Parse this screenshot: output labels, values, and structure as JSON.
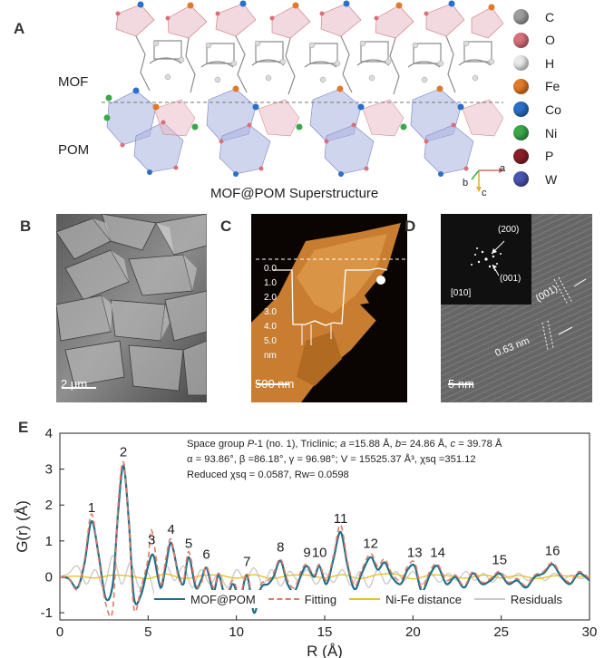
{
  "panels": {
    "A": {
      "letter": "A",
      "label_mof": "MOF",
      "label_pom": "POM",
      "caption": "MOF@POM Superstructure",
      "axes": {
        "a": "a",
        "b": "b",
        "c": "c"
      },
      "legend": [
        {
          "symbol": "C",
          "color": "#9e9e9e"
        },
        {
          "symbol": "O",
          "color": "#d9707a"
        },
        {
          "symbol": "H",
          "color": "#e8e8e8"
        },
        {
          "symbol": "Fe",
          "color": "#e07a2a"
        },
        {
          "symbol": "Co",
          "color": "#2a6fc9"
        },
        {
          "symbol": "Ni",
          "color": "#3aa84a"
        },
        {
          "symbol": "P",
          "color": "#8a1f28"
        },
        {
          "symbol": "W",
          "color": "#4a55b0"
        }
      ]
    },
    "B": {
      "letter": "B",
      "scalebar": "2 μm"
    },
    "C": {
      "letter": "C",
      "scalebar": "500 nm",
      "profile_ticks": [
        "0.0",
        "1.0",
        "2.0",
        "3.0",
        "4.0",
        "5.0"
      ],
      "profile_unit": "nm"
    },
    "D": {
      "letter": "D",
      "scalebar": "5 nm",
      "fft_axis": "[010]",
      "spot_200": "(200)",
      "spot_001": "(001)",
      "lattice_label": "(001)",
      "d_spacing": "0.63 nm"
    },
    "E": {
      "letter": "E",
      "info_line1_a": "Space group ",
      "info_line1_b": "P",
      "info_line1_c": "-1 (no. 1), Triclinic; ",
      "info_line1_d": "a",
      "info_line1_e": " =15.88 Å, ",
      "info_line1_f": "b",
      "info_line1_g": "= 24.86 Å, ",
      "info_line1_h": "c",
      "info_line1_i": " = 39.78 Å",
      "info_line2": "α = 93.86°, β =86.18°, γ = 96.98°; V = 15525.37 Å³, χsq =351.12",
      "info_line3": "Reduced χsq = 0.0587, Rw= 0.0598"
    }
  },
  "chart_data": {
    "type": "line",
    "xlabel": "R (Å)",
    "ylabel": "G(r) (Å)",
    "xlim": [
      0,
      30
    ],
    "ylim": [
      -1.2,
      4
    ],
    "xticks": [
      "0",
      "5",
      "10",
      "15",
      "20",
      "25",
      "30"
    ],
    "yticks": [
      "-1",
      "0",
      "1",
      "2",
      "3",
      "4"
    ],
    "legend": [
      "MOF@POM",
      "Fitting",
      "Ni-Fe distance",
      "Residuals"
    ],
    "colors": {
      "MOF@POM": "#1f6e86",
      "Fitting": "#e07a6a",
      "Ni-Fe distance": "#e6c22a",
      "Residuals": "#c8c8c8"
    },
    "peaks": [
      {
        "label": "1",
        "r": 1.8,
        "g": 1.55
      },
      {
        "label": "2",
        "r": 3.6,
        "g": 3.1
      },
      {
        "label": "3",
        "r": 5.2,
        "g": 0.65
      },
      {
        "label": "4",
        "r": 6.3,
        "g": 0.95
      },
      {
        "label": "5",
        "r": 7.3,
        "g": 0.55
      },
      {
        "label": "6",
        "r": 8.3,
        "g": 0.25
      },
      {
        "label": "7",
        "r": 10.6,
        "g": 0.05
      },
      {
        "label": "8",
        "r": 12.5,
        "g": 0.45
      },
      {
        "label": "9",
        "r": 14.0,
        "g": 0.3
      },
      {
        "label": "10",
        "r": 14.7,
        "g": 0.3
      },
      {
        "label": "11",
        "r": 15.9,
        "g": 1.25
      },
      {
        "label": "12",
        "r": 17.6,
        "g": 0.55
      },
      {
        "label": "13",
        "r": 20.1,
        "g": 0.3
      },
      {
        "label": "14",
        "r": 21.4,
        "g": 0.3
      },
      {
        "label": "15",
        "r": 24.9,
        "g": 0.1
      },
      {
        "label": "16",
        "r": 27.9,
        "g": 0.35
      }
    ],
    "series": [
      {
        "name": "MOF@POM",
        "x": [
          0,
          0.5,
          1.0,
          1.4,
          1.8,
          2.2,
          2.6,
          3.0,
          3.3,
          3.6,
          3.9,
          4.2,
          4.6,
          5.0,
          5.3,
          5.7,
          6.0,
          6.3,
          6.7,
          7.0,
          7.3,
          7.7,
          8.0,
          8.3,
          8.7,
          9.0,
          9.4,
          9.8,
          10.2,
          10.6,
          11.0,
          11.4,
          11.8,
          12.1,
          12.5,
          12.9,
          13.3,
          13.7,
          14.0,
          14.4,
          14.7,
          15.1,
          15.5,
          15.9,
          16.3,
          16.7,
          17.1,
          17.6,
          18.0,
          18.4,
          18.8,
          19.3,
          19.7,
          20.1,
          20.5,
          21.0,
          21.4,
          21.9,
          22.4,
          22.9,
          23.4,
          23.9,
          24.4,
          24.9,
          25.4,
          25.9,
          26.4,
          26.9,
          27.4,
          27.9,
          28.4,
          28.9,
          29.4,
          30.0
        ],
        "y": [
          0,
          -0.05,
          -0.3,
          0.4,
          1.55,
          0.6,
          -0.6,
          -0.2,
          1.8,
          3.1,
          1.6,
          -0.6,
          -0.5,
          0.3,
          0.6,
          -0.3,
          0.3,
          0.95,
          0.1,
          -0.2,
          0.55,
          -0.3,
          -0.1,
          0.25,
          -0.4,
          0.05,
          -0.6,
          -0.2,
          -0.6,
          0.05,
          -1.0,
          -0.3,
          -0.2,
          0.0,
          0.45,
          -0.2,
          -0.4,
          0.1,
          0.3,
          0.0,
          0.3,
          -0.2,
          0.5,
          1.25,
          0.3,
          -0.35,
          0.1,
          0.55,
          0.2,
          0.4,
          0.0,
          -0.2,
          0.2,
          0.3,
          -0.4,
          0.1,
          0.3,
          -0.2,
          0.0,
          -0.3,
          0.1,
          -0.2,
          -0.1,
          0.1,
          -0.2,
          -0.1,
          -0.3,
          0.0,
          0.1,
          0.35,
          0.0,
          -0.2,
          0.1,
          -0.1
        ]
      },
      {
        "name": "Fitting",
        "x": [
          0,
          0.5,
          1.0,
          1.4,
          1.8,
          2.2,
          2.6,
          3.0,
          3.3,
          3.6,
          3.9,
          4.2,
          4.6,
          5.0,
          5.2,
          5.7,
          6.0,
          6.3,
          6.7,
          7.0,
          7.3,
          7.7,
          8.0,
          8.3,
          8.7,
          9.0,
          9.4,
          9.8,
          10.2,
          10.6,
          11.0,
          11.4,
          11.8,
          12.1,
          12.5,
          12.9,
          13.3,
          13.7,
          14.0,
          14.4,
          14.7,
          15.1,
          15.5,
          15.9,
          16.3,
          16.7,
          17.1,
          17.6,
          18.0,
          18.4,
          18.8,
          19.3,
          19.7,
          20.1,
          20.5,
          21.0,
          21.4,
          21.9,
          22.4,
          22.9,
          23.4,
          23.9,
          24.4,
          24.9,
          25.4,
          25.9,
          26.4,
          26.9,
          27.4,
          27.9,
          28.4,
          28.9,
          29.4,
          30.0
        ],
        "y": [
          0,
          -0.05,
          -0.35,
          0.5,
          1.75,
          0.5,
          -0.75,
          -0.9,
          2.0,
          3.2,
          1.5,
          -0.9,
          -0.3,
          0.5,
          1.3,
          -0.2,
          0.5,
          1.05,
          0.0,
          -0.1,
          0.7,
          -0.2,
          -0.2,
          0.3,
          -0.3,
          0.1,
          -0.5,
          -0.1,
          -0.5,
          0.1,
          -0.8,
          -0.2,
          -0.1,
          0.1,
          0.5,
          -0.1,
          -0.3,
          0.2,
          0.35,
          0.05,
          0.35,
          -0.1,
          0.6,
          1.45,
          0.4,
          -0.25,
          0.2,
          0.65,
          0.3,
          0.5,
          0.1,
          -0.1,
          0.3,
          0.4,
          -0.3,
          0.2,
          0.35,
          -0.1,
          0.05,
          -0.25,
          0.15,
          -0.15,
          -0.05,
          0.15,
          -0.15,
          -0.05,
          -0.25,
          0.05,
          0.15,
          0.4,
          0.05,
          -0.15,
          0.15,
          -0.05
        ]
      },
      {
        "name": "Ni-Fe distance",
        "x": [
          0,
          1,
          2,
          3,
          4,
          5,
          6,
          7,
          8,
          9,
          10,
          11,
          12,
          13,
          14,
          15,
          16,
          17,
          18,
          19,
          20,
          21,
          22,
          23,
          24,
          25,
          26,
          27,
          28,
          29,
          30
        ],
        "y": [
          0,
          0.02,
          -0.03,
          0.05,
          0.02,
          -0.05,
          0.08,
          -0.05,
          0.03,
          0.05,
          -0.04,
          0.06,
          -0.05,
          0.04,
          0.05,
          -0.03,
          0.06,
          -0.05,
          0.06,
          0.08,
          -0.06,
          0.05,
          0.03,
          -0.04,
          0.05,
          -0.03,
          0.04,
          -0.05,
          0.03,
          0.02,
          0.0
        ]
      },
      {
        "name": "Residuals",
        "x": [
          0,
          0.5,
          1.0,
          1.5,
          2.0,
          2.5,
          3.0,
          3.5,
          4.0,
          4.5,
          5.0,
          5.5,
          6.0,
          6.5,
          7.0,
          7.5,
          8.0,
          8.5,
          9.0,
          9.5,
          10.0,
          10.5,
          11.0,
          11.5,
          12.0,
          12.5,
          13.0,
          13.5,
          14.0,
          14.5,
          15.0,
          15.5,
          16.0,
          16.5,
          17.0,
          17.5,
          18.0,
          18.5,
          19.0,
          19.5,
          20.0,
          20.5,
          21.0,
          21.5,
          22.0,
          22.5,
          23.0,
          23.5,
          24.0,
          24.5,
          25.0,
          25.5,
          26.0,
          26.5,
          27.0,
          27.5,
          28.0,
          28.5,
          29.0,
          29.5,
          30.0
        ],
        "y": [
          0,
          0.1,
          0.3,
          -0.2,
          0.2,
          -0.3,
          0.6,
          -0.2,
          0.4,
          -0.3,
          0.1,
          -0.6,
          0.3,
          -0.1,
          0.3,
          -0.3,
          0.2,
          -0.2,
          0.1,
          -0.3,
          0.2,
          -0.1,
          0.25,
          -0.2,
          0.2,
          -0.25,
          0.15,
          -0.1,
          0.2,
          -0.2,
          0.1,
          -0.15,
          0.2,
          -0.25,
          0.15,
          -0.3,
          0.2,
          -0.2,
          0.15,
          -0.1,
          0.15,
          -0.2,
          0.1,
          -0.15,
          0.1,
          -0.1,
          0.15,
          -0.1,
          0.1,
          -0.15,
          0.1,
          -0.05,
          0.1,
          -0.1,
          0.05,
          -0.1,
          0.1,
          -0.05,
          0.05,
          -0.05,
          0.0
        ]
      }
    ]
  }
}
